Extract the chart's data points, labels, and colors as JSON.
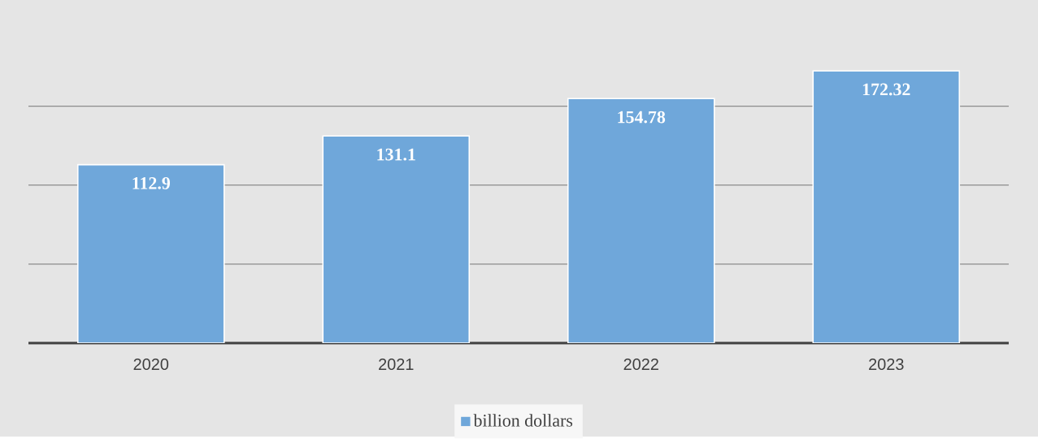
{
  "chart_data": {
    "type": "bar",
    "categories": [
      "2020",
      "2021",
      "2022",
      "2023"
    ],
    "series": [
      {
        "name": "billion dollars",
        "color": "#6fa7da",
        "values": [
          112.9,
          131.1,
          154.78,
          172.32
        ]
      }
    ],
    "tick_labels": "x",
    "grid": "y",
    "legend": "bottom",
    "data_labels": true
  }
}
